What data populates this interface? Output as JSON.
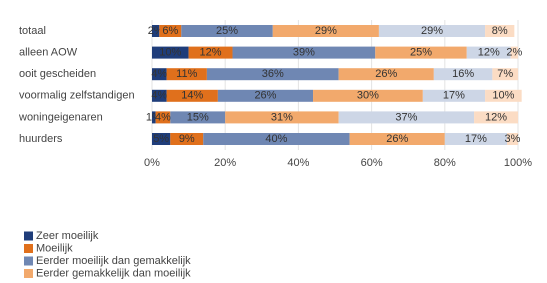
{
  "chart_data": {
    "type": "stacked-bar-horizontal",
    "categories": [
      "totaal",
      "alleen AOW",
      "ooit gescheiden",
      "voormalig zelfstandigen",
      "woningeigenaren",
      "huurders"
    ],
    "series": [
      {
        "name": "Zeer moeilijk",
        "color": "#1f3d7a",
        "values": [
          2,
          10,
          4,
          4,
          1,
          5
        ],
        "value_labels": [
          "2%",
          "10%",
          "4%",
          "4%",
          "1%",
          "5%"
        ]
      },
      {
        "name": "Moeilijk",
        "color": "#e0701c",
        "values": [
          6,
          12,
          11,
          14,
          4,
          9
        ],
        "value_labels": [
          "6%",
          "12%",
          "11%",
          "14%",
          "4%",
          "9%"
        ]
      },
      {
        "name": "Eerder moeilijk dan gemakkelijk",
        "color": "#6f87b3",
        "values": [
          25,
          39,
          36,
          26,
          15,
          40
        ],
        "value_labels": [
          "25%",
          "39%",
          "36%",
          "26%",
          "15%",
          "40%"
        ]
      },
      {
        "name": "Eerder gemakkelijk dan moeilijk",
        "color": "#f2a96c",
        "values": [
          29,
          25,
          26,
          30,
          31,
          26
        ],
        "value_labels": [
          "29%",
          "25%",
          "26%",
          "30%",
          "31%",
          "26%"
        ]
      },
      {
        "color": "#cdd6e6",
        "values": [
          29,
          12,
          16,
          17,
          37,
          17
        ],
        "value_labels": [
          "29%",
          "12%",
          "16%",
          "17%",
          "37%",
          "17%"
        ]
      },
      {
        "color": "#fbdcc4",
        "values": [
          8,
          2,
          7,
          10,
          12,
          3
        ],
        "value_labels": [
          "8%",
          "2%",
          "7%",
          "10%",
          "12%",
          "3%"
        ]
      }
    ],
    "xlim": [
      0,
      100
    ],
    "xticks": [
      {
        "value": 0,
        "label": "0%"
      },
      {
        "value": 20,
        "label": "20%"
      },
      {
        "value": 40,
        "label": "40%"
      },
      {
        "value": 60,
        "label": "60%"
      },
      {
        "value": 80,
        "label": "80%"
      },
      {
        "value": 100,
        "label": "100%"
      }
    ],
    "grid": true
  }
}
